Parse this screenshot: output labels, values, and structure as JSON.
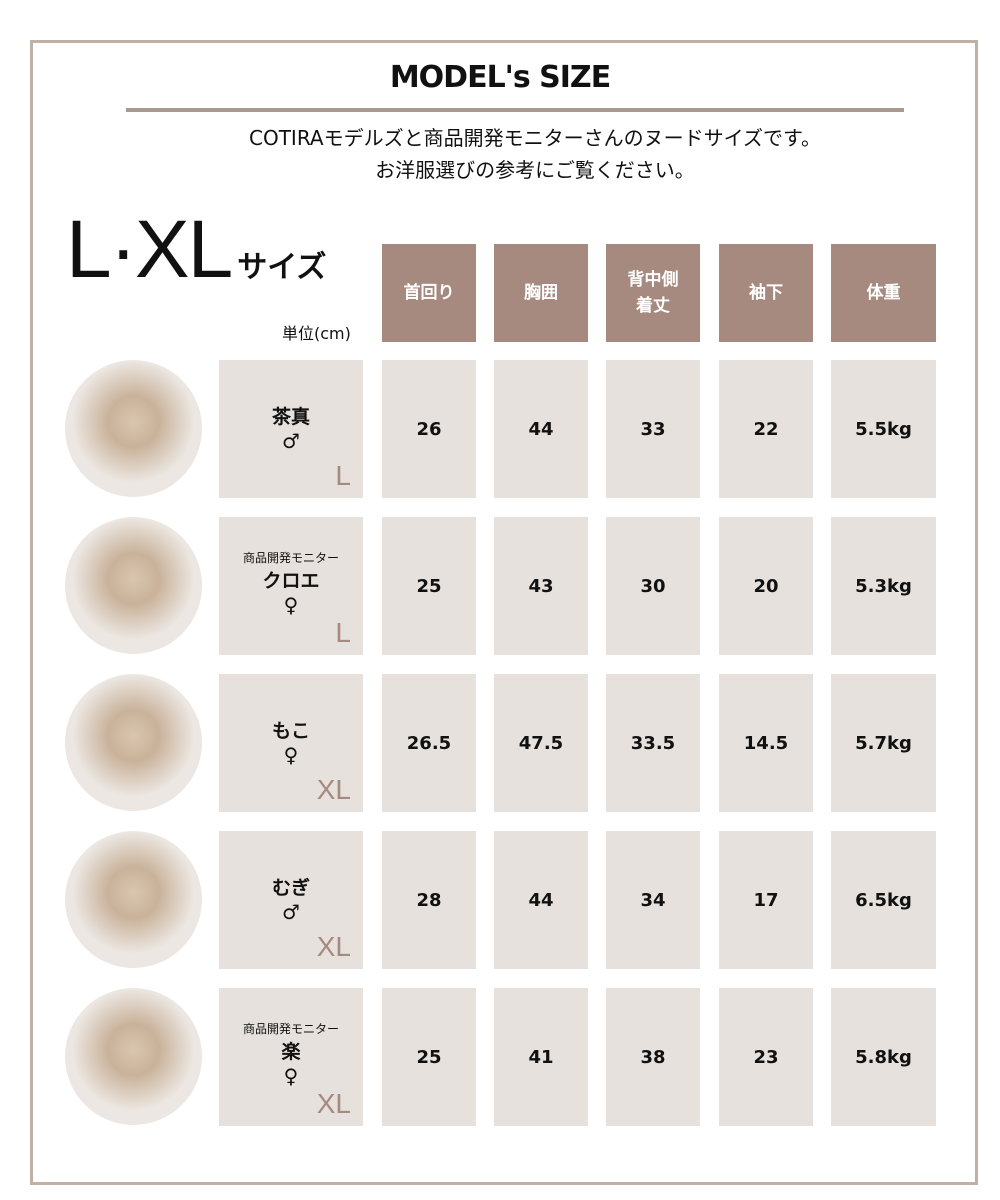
{
  "title": "MODEL's SIZE",
  "intro": [
    "COTIRAモデルズと商品開発モニターさんのヌードサイズです。",
    "お洋服選びの参考にご覧ください。"
  ],
  "size_heading": "L·XL",
  "size_suffix": "サイズ",
  "unit": "単位(cm)",
  "headers": [
    "首回り",
    "胸囲",
    "背中側\n着丈",
    "袖下",
    "体重"
  ],
  "rows": [
    {
      "monitor": "",
      "name": "茶真",
      "sex": "♂",
      "size": "L",
      "values": [
        "26",
        "44",
        "33",
        "22",
        "5.5kg"
      ]
    },
    {
      "monitor": "商品開発モニター",
      "name": "クロエ",
      "sex": "♀",
      "size": "L",
      "values": [
        "25",
        "43",
        "30",
        "20",
        "5.3kg"
      ]
    },
    {
      "monitor": "",
      "name": "もこ",
      "sex": "♀",
      "size": "XL",
      "values": [
        "26.5",
        "47.5",
        "33.5",
        "14.5",
        "5.7kg"
      ]
    },
    {
      "monitor": "",
      "name": "むぎ",
      "sex": "♂",
      "size": "XL",
      "values": [
        "28",
        "44",
        "34",
        "17",
        "6.5kg"
      ]
    },
    {
      "monitor": "商品開発モニター",
      "name": "楽",
      "sex": "♀",
      "size": "XL",
      "values": [
        "25",
        "41",
        "38",
        "23",
        "5.8kg"
      ]
    }
  ],
  "colors": {
    "header": "#a68a80",
    "cell": "#e6e1dc",
    "frame": "#bfb1a6"
  }
}
